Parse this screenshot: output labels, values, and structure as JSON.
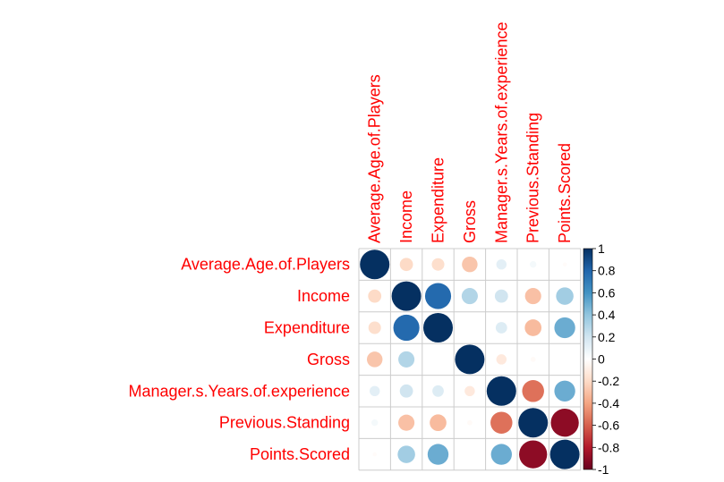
{
  "chart_data": {
    "type": "heatmap",
    "style": "circle",
    "variables": [
      "Average.Age.of.Players",
      "Income",
      "Expenditure",
      "Gross",
      "Manager.s.Years.of.experience",
      "Previous.Standing",
      "Points.Scored"
    ],
    "matrix": [
      [
        1.0,
        -0.2,
        -0.18,
        -0.28,
        0.12,
        0.05,
        -0.02
      ],
      [
        -0.2,
        1.0,
        0.78,
        0.3,
        0.2,
        -0.3,
        0.35
      ],
      [
        -0.18,
        0.78,
        1.0,
        0.0,
        0.15,
        -0.32,
        0.5
      ],
      [
        -0.28,
        0.3,
        0.0,
        1.0,
        -0.12,
        -0.03,
        0.0
      ],
      [
        0.12,
        0.2,
        0.15,
        -0.12,
        1.0,
        -0.55,
        0.5
      ],
      [
        0.05,
        -0.3,
        -0.32,
        -0.03,
        -0.55,
        1.0,
        -0.9
      ],
      [
        -0.02,
        0.35,
        0.5,
        0.0,
        0.5,
        -0.9,
        1.0
      ]
    ],
    "colorbar": {
      "range": [
        -1,
        1
      ],
      "ticks": [
        "1",
        "0.8",
        "0.6",
        "0.4",
        "0.2",
        "0",
        "-0.2",
        "-0.4",
        "-0.6",
        "-0.8",
        "-1"
      ],
      "placement": "right"
    },
    "label_color": "#ff0000",
    "palette": [
      "#67001F",
      "#B2182B",
      "#D6604D",
      "#F4A582",
      "#FDDBC7",
      "#FFFFFF",
      "#D1E5F0",
      "#92C5DE",
      "#4393C3",
      "#2166AC",
      "#053061"
    ],
    "grid": true
  }
}
